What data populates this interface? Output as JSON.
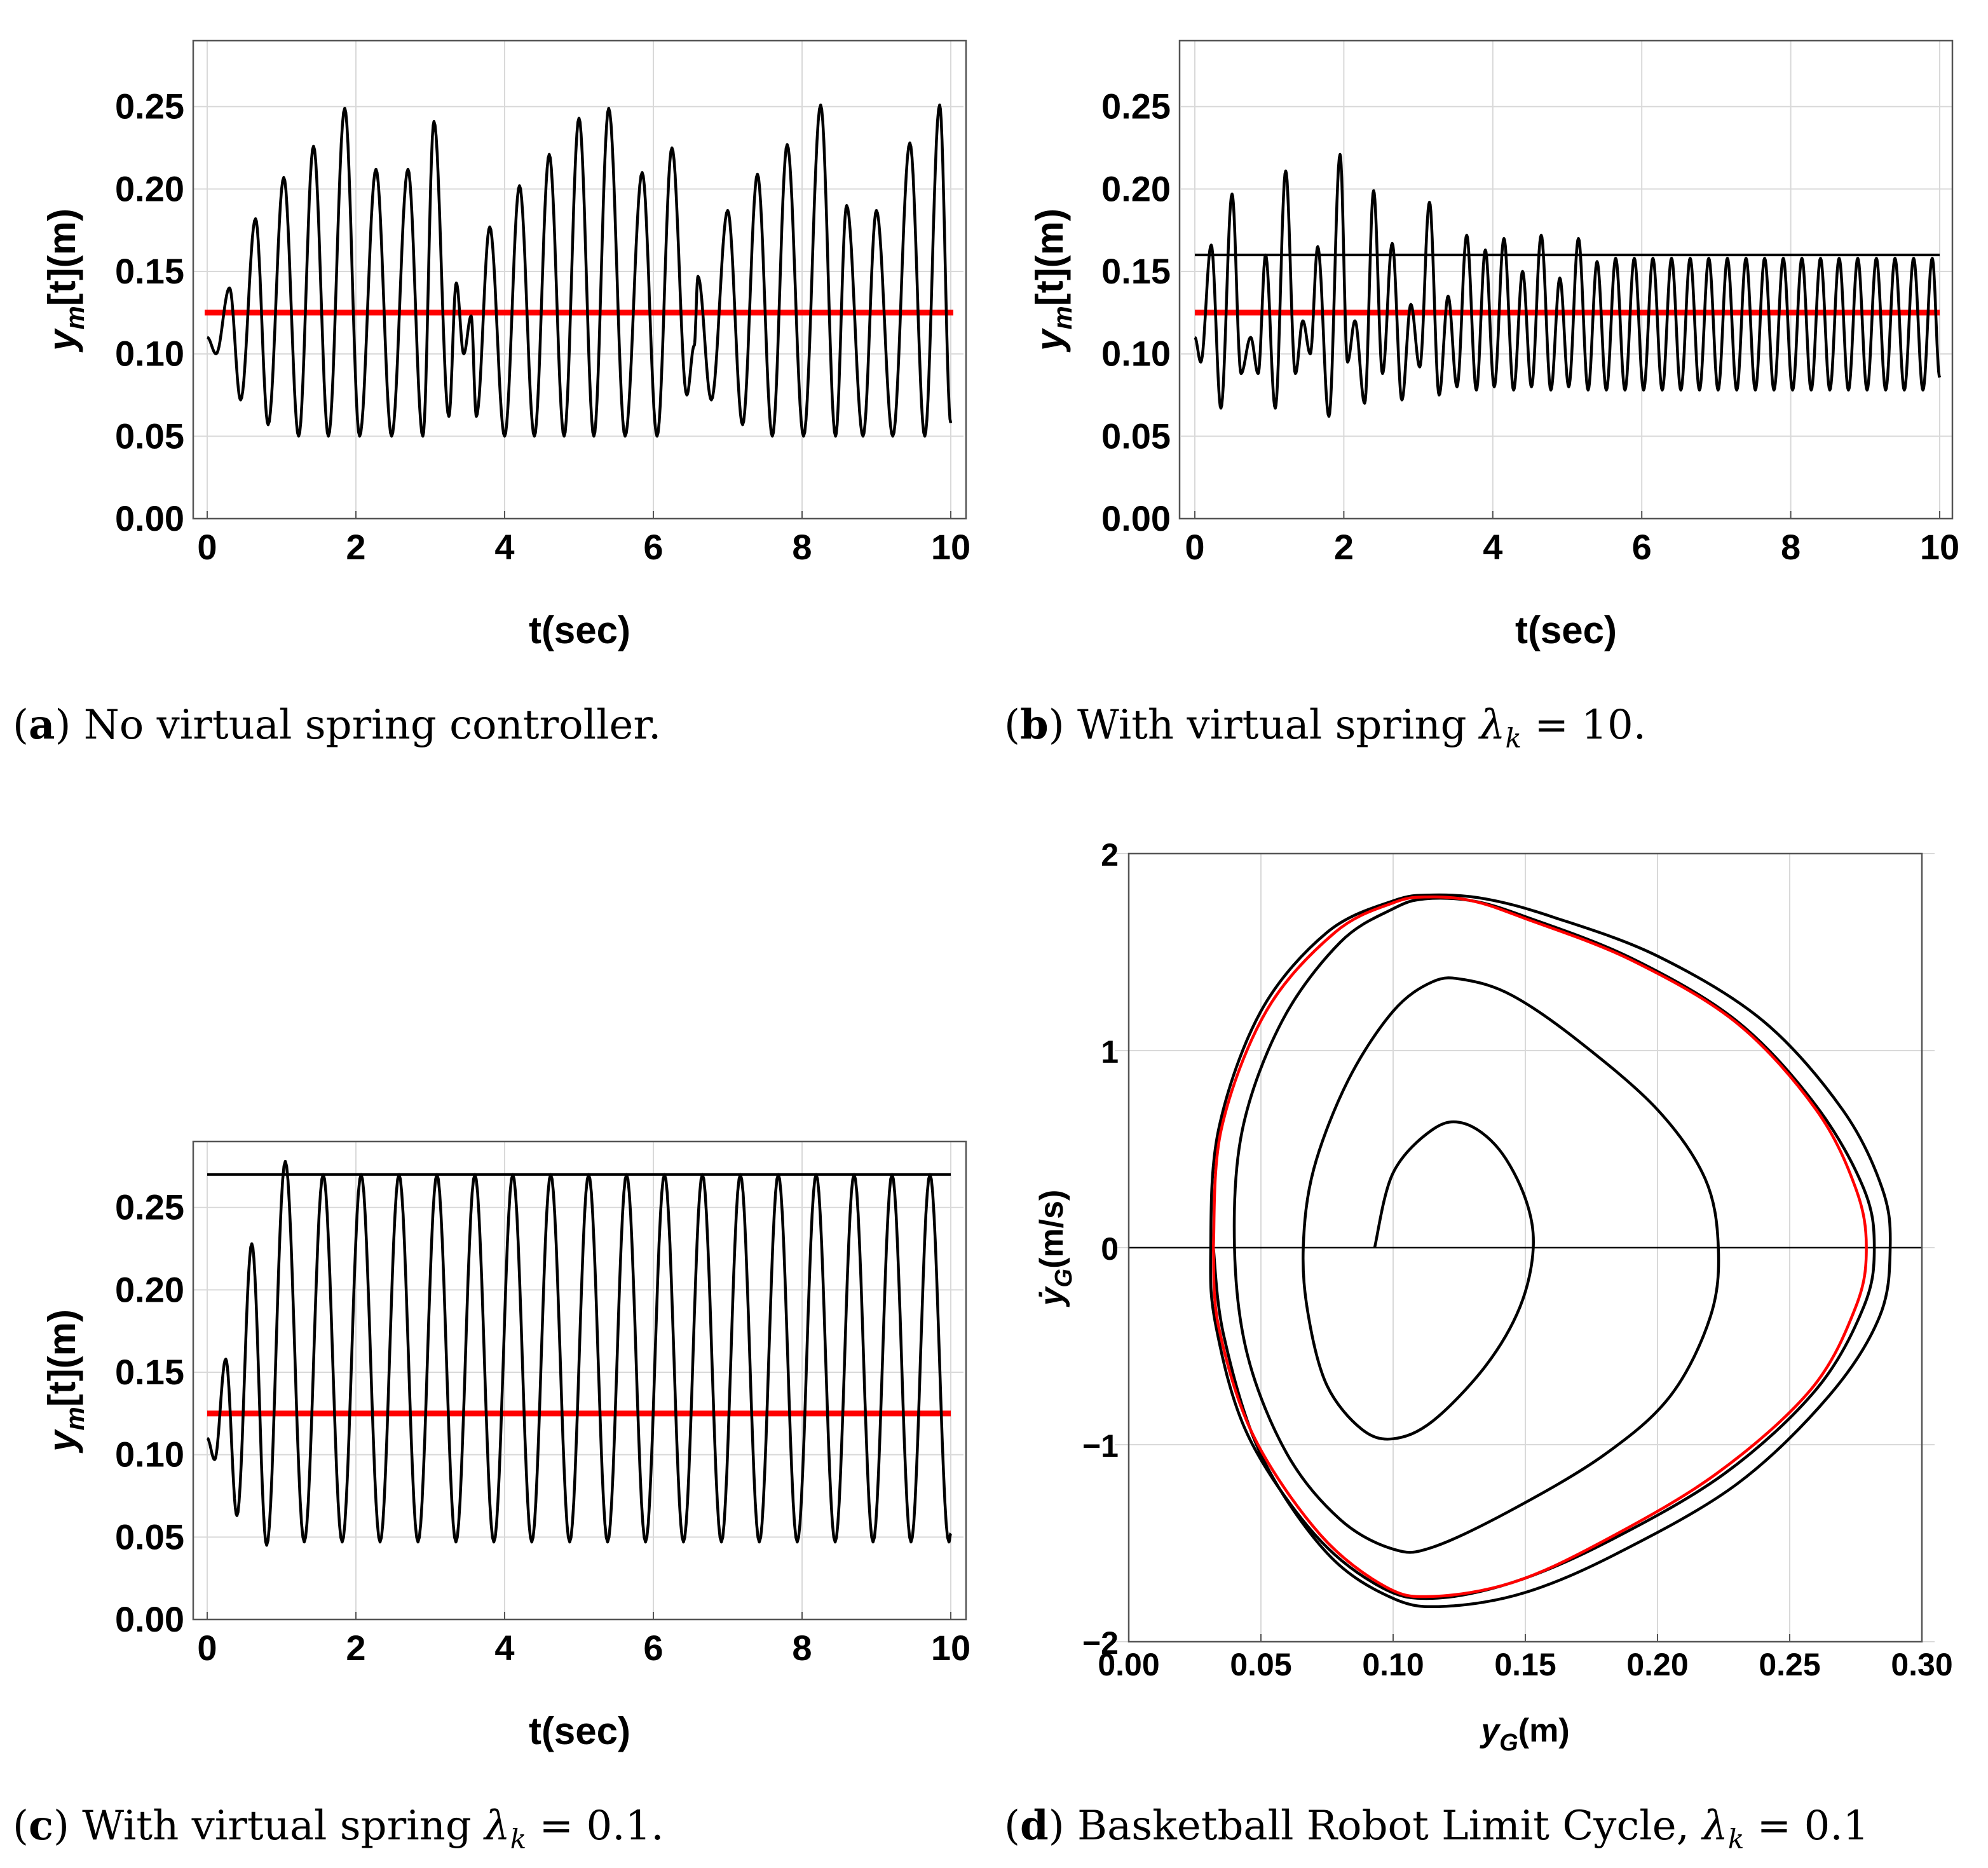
{
  "chart_data": [
    {
      "id": "a",
      "type": "line",
      "xlabel": "t(sec)",
      "ylabel": "y_m[t](m)",
      "xlim": [
        0,
        10
      ],
      "ylim": [
        0,
        0.29
      ],
      "xticks": [
        "0",
        "2",
        "4",
        "6",
        "8",
        "10"
      ],
      "yticks": [
        "0.00",
        "0.05",
        "0.10",
        "0.15",
        "0.20",
        "0.25"
      ],
      "grid": true,
      "reference_line_red": 0.125,
      "series": [
        {
          "kind": "oscillation",
          "start_y": 0.11,
          "peaks": [
            [
              0.3,
              0.14
            ],
            [
              0.65,
              0.182
            ],
            [
              1.03,
              0.207
            ],
            [
              1.43,
              0.226
            ],
            [
              1.85,
              0.249
            ],
            [
              2.27,
              0.212
            ],
            [
              2.7,
              0.212
            ],
            [
              3.05,
              0.241
            ],
            [
              3.35,
              0.143
            ],
            [
              3.55,
              0.123
            ],
            [
              3.8,
              0.177
            ],
            [
              4.2,
              0.202
            ],
            [
              4.6,
              0.221
            ],
            [
              5.0,
              0.243
            ],
            [
              5.4,
              0.249
            ],
            [
              5.85,
              0.21
            ],
            [
              6.25,
              0.225
            ],
            [
              6.6,
              0.147
            ],
            [
              7.0,
              0.187
            ],
            [
              7.4,
              0.209
            ],
            [
              7.8,
              0.227
            ],
            [
              8.25,
              0.251
            ],
            [
              8.6,
              0.19
            ],
            [
              9.0,
              0.187
            ],
            [
              9.45,
              0.228
            ],
            [
              9.85,
              0.251
            ]
          ],
          "troughs": [
            [
              0.12,
              0.1
            ],
            [
              0.45,
              0.072
            ],
            [
              0.82,
              0.057
            ],
            [
              1.23,
              0.05
            ],
            [
              1.63,
              0.05
            ],
            [
              2.05,
              0.05
            ],
            [
              2.48,
              0.05
            ],
            [
              2.9,
              0.05
            ],
            [
              3.25,
              0.062
            ],
            [
              3.45,
              0.1
            ],
            [
              3.62,
              0.062
            ],
            [
              4.0,
              0.05
            ],
            [
              4.4,
              0.05
            ],
            [
              4.8,
              0.05
            ],
            [
              5.2,
              0.05
            ],
            [
              5.62,
              0.05
            ],
            [
              6.05,
              0.05
            ],
            [
              6.45,
              0.075
            ],
            [
              6.55,
              0.105
            ],
            [
              6.78,
              0.072
            ],
            [
              7.2,
              0.057
            ],
            [
              7.6,
              0.05
            ],
            [
              8.02,
              0.05
            ],
            [
              8.45,
              0.05
            ],
            [
              8.82,
              0.05
            ],
            [
              9.22,
              0.05
            ],
            [
              9.65,
              0.05
            ]
          ],
          "end": [
            10.0,
            0.058
          ]
        }
      ]
    },
    {
      "id": "b",
      "type": "line",
      "xlabel": "t(sec)",
      "ylabel": "y_m[t](m)",
      "xlim": [
        0,
        10
      ],
      "ylim": [
        0,
        0.29
      ],
      "xticks": [
        "0",
        "2",
        "4",
        "6",
        "8",
        "10"
      ],
      "yticks": [
        "0.00",
        "0.05",
        "0.10",
        "0.15",
        "0.20",
        "0.25"
      ],
      "grid": true,
      "reference_line_red": 0.125,
      "amplitude_line_black": 0.16,
      "series": [
        {
          "kind": "oscillation",
          "start_y": 0.11,
          "peaks": [
            [
              0.22,
              0.166
            ],
            [
              0.5,
              0.197
            ],
            [
              0.75,
              0.11
            ],
            [
              0.95,
              0.16
            ],
            [
              1.22,
              0.211
            ],
            [
              1.45,
              0.12
            ],
            [
              1.65,
              0.165
            ],
            [
              1.95,
              0.221
            ],
            [
              2.15,
              0.12
            ],
            [
              2.4,
              0.199
            ],
            [
              2.65,
              0.167
            ],
            [
              2.9,
              0.13
            ],
            [
              3.15,
              0.192
            ],
            [
              3.4,
              0.135
            ],
            [
              3.65,
              0.172
            ],
            [
              3.9,
              0.163
            ],
            [
              4.15,
              0.17
            ],
            [
              4.4,
              0.15
            ],
            [
              4.65,
              0.172
            ],
            [
              4.9,
              0.146
            ],
            [
              5.15,
              0.17
            ],
            [
              5.4,
              0.156
            ]
          ],
          "troughs": [
            [
              0.08,
              0.095
            ],
            [
              0.35,
              0.067
            ],
            [
              0.62,
              0.088
            ],
            [
              0.85,
              0.088
            ],
            [
              1.08,
              0.067
            ],
            [
              1.35,
              0.088
            ],
            [
              1.55,
              0.1
            ],
            [
              1.8,
              0.062
            ],
            [
              2.05,
              0.095
            ],
            [
              2.28,
              0.07
            ],
            [
              2.52,
              0.088
            ],
            [
              2.78,
              0.072
            ],
            [
              3.02,
              0.092
            ],
            [
              3.28,
              0.075
            ],
            [
              3.52,
              0.08
            ],
            [
              3.78,
              0.078
            ],
            [
              4.02,
              0.08
            ],
            [
              4.28,
              0.078
            ],
            [
              4.52,
              0.08
            ],
            [
              4.78,
              0.078
            ],
            [
              5.02,
              0.08
            ],
            [
              5.28,
              0.078
            ]
          ],
          "steady": {
            "t_start": 5.4,
            "period": 0.25,
            "high": 0.158,
            "low": 0.078,
            "t_end": 10.0
          }
        }
      ]
    },
    {
      "id": "c",
      "type": "line",
      "xlabel": "t(sec)",
      "ylabel": "y_m[t](m)",
      "xlim": [
        0,
        10
      ],
      "ylim": [
        0,
        0.29
      ],
      "xticks": [
        "0",
        "2",
        "4",
        "6",
        "8",
        "10"
      ],
      "yticks": [
        "0.00",
        "0.05",
        "0.10",
        "0.15",
        "0.20",
        "0.25"
      ],
      "grid": true,
      "reference_line_red": 0.125,
      "amplitude_line_black": 0.27,
      "series": [
        {
          "kind": "oscillation",
          "start_y": 0.11,
          "peaks": [
            [
              0.25,
              0.158
            ],
            [
              0.6,
              0.228
            ],
            [
              1.05,
              0.278
            ]
          ],
          "troughs": [
            [
              0.1,
              0.097
            ],
            [
              0.4,
              0.063
            ],
            [
              0.8,
              0.045
            ]
          ],
          "steady": {
            "t_start": 1.05,
            "period": 0.51,
            "high": 0.27,
            "low": 0.047,
            "t_end": 10.0
          }
        }
      ]
    },
    {
      "id": "d",
      "type": "line",
      "xlabel": "y_G(m)",
      "ylabel": "ẏ_G(m/s)",
      "xlim": [
        0,
        0.3
      ],
      "ylim": [
        -2,
        2
      ],
      "xticks": [
        "0.00",
        "0.05",
        "0.10",
        "0.15",
        "0.20",
        "0.25",
        "0.30"
      ],
      "yticks": [
        "−2",
        "−1",
        "0",
        "1",
        "2"
      ],
      "grid": true,
      "series": [
        {
          "kind": "spiral",
          "color": "#000000",
          "points": [
            [
              0.093,
              0
            ],
            [
              0.1,
              0.38
            ],
            [
              0.115,
              0.6
            ],
            [
              0.127,
              0.63
            ],
            [
              0.14,
              0.5
            ],
            [
              0.15,
              0.25
            ],
            [
              0.153,
              0
            ],
            [
              0.148,
              -0.3
            ],
            [
              0.135,
              -0.6
            ],
            [
              0.115,
              -0.88
            ],
            [
              0.1,
              -0.97
            ],
            [
              0.088,
              -0.92
            ],
            [
              0.075,
              -0.7
            ],
            [
              0.068,
              -0.35
            ],
            [
              0.066,
              0
            ],
            [
              0.07,
              0.4
            ],
            [
              0.083,
              0.85
            ],
            [
              0.1,
              1.2
            ],
            [
              0.115,
              1.35
            ],
            [
              0.127,
              1.36
            ],
            [
              0.145,
              1.28
            ],
            [
              0.17,
              1.05
            ],
            [
              0.2,
              0.7
            ],
            [
              0.218,
              0.35
            ],
            [
              0.223,
              0
            ],
            [
              0.22,
              -0.35
            ],
            [
              0.205,
              -0.75
            ],
            [
              0.18,
              -1.05
            ],
            [
              0.145,
              -1.33
            ],
            [
              0.115,
              -1.52
            ],
            [
              0.1,
              -1.53
            ],
            [
              0.08,
              -1.38
            ],
            [
              0.06,
              -1.05
            ],
            [
              0.045,
              -0.55
            ],
            [
              0.04,
              0
            ],
            [
              0.043,
              0.6
            ],
            [
              0.058,
              1.15
            ],
            [
              0.08,
              1.55
            ],
            [
              0.1,
              1.72
            ],
            [
              0.112,
              1.77
            ],
            [
              0.13,
              1.76
            ],
            [
              0.15,
              1.68
            ],
            [
              0.19,
              1.47
            ],
            [
              0.23,
              1.15
            ],
            [
              0.26,
              0.72
            ],
            [
              0.278,
              0.3
            ],
            [
              0.282,
              0
            ],
            [
              0.278,
              -0.3
            ],
            [
              0.26,
              -0.72
            ],
            [
              0.225,
              -1.15
            ],
            [
              0.18,
              -1.5
            ],
            [
              0.145,
              -1.7
            ],
            [
              0.115,
              -1.78
            ],
            [
              0.095,
              -1.72
            ],
            [
              0.07,
              -1.45
            ],
            [
              0.045,
              -0.95
            ],
            [
              0.033,
              -0.4
            ],
            [
              0.031,
              0
            ],
            [
              0.034,
              0.6
            ],
            [
              0.05,
              1.2
            ],
            [
              0.075,
              1.6
            ],
            [
              0.1,
              1.76
            ],
            [
              0.115,
              1.79
            ],
            [
              0.135,
              1.77
            ],
            [
              0.16,
              1.68
            ],
            [
              0.2,
              1.48
            ],
            [
              0.24,
              1.15
            ],
            [
              0.27,
              0.7
            ],
            [
              0.285,
              0.3
            ],
            [
              0.288,
              0
            ],
            [
              0.284,
              -0.35
            ],
            [
              0.265,
              -0.75
            ],
            [
              0.23,
              -1.2
            ],
            [
              0.185,
              -1.55
            ],
            [
              0.15,
              -1.75
            ],
            [
              0.12,
              -1.82
            ],
            [
              0.1,
              -1.78
            ],
            [
              0.075,
              -1.55
            ],
            [
              0.05,
              -1.05
            ],
            [
              0.036,
              -0.45
            ],
            [
              0.032,
              0
            ]
          ]
        },
        {
          "kind": "limit-cycle",
          "color": "#ff0000",
          "points": [
            [
              0.032,
              0
            ],
            [
              0.035,
              0.6
            ],
            [
              0.052,
              1.2
            ],
            [
              0.078,
              1.6
            ],
            [
              0.1,
              1.75
            ],
            [
              0.113,
              1.78
            ],
            [
              0.13,
              1.76
            ],
            [
              0.15,
              1.67
            ],
            [
              0.19,
              1.46
            ],
            [
              0.23,
              1.14
            ],
            [
              0.26,
              0.7
            ],
            [
              0.275,
              0.3
            ],
            [
              0.279,
              0
            ],
            [
              0.275,
              -0.3
            ],
            [
              0.258,
              -0.72
            ],
            [
              0.222,
              -1.15
            ],
            [
              0.178,
              -1.5
            ],
            [
              0.145,
              -1.7
            ],
            [
              0.115,
              -1.77
            ],
            [
              0.097,
              -1.72
            ],
            [
              0.072,
              -1.45
            ],
            [
              0.047,
              -0.95
            ],
            [
              0.034,
              -0.4
            ],
            [
              0.032,
              0
            ]
          ]
        }
      ]
    }
  ],
  "captions": {
    "a": {
      "label": "a",
      "text": "No virtual spring controller."
    },
    "b": {
      "label": "b",
      "text": "With virtual spring",
      "lambda_value": "10."
    },
    "c": {
      "label": "c",
      "text": "With virtual spring",
      "lambda_value": "0.1."
    },
    "d": {
      "label": "d",
      "text": "Basketball Robot Limit Cycle,",
      "lambda_value": "0.1"
    }
  }
}
